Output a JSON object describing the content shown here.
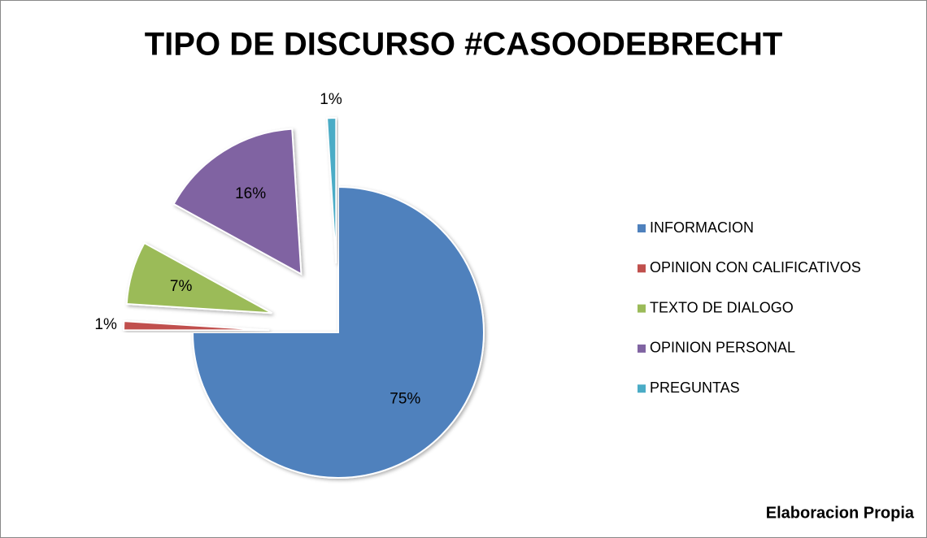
{
  "chart_data": {
    "type": "pie",
    "title": "TIPO DE DISCURSO #CASOODEBRECHT",
    "categories": [
      "INFORMACION",
      "OPINION CON CALIFICATIVOS",
      "TEXTO DE DIALOGO",
      "OPINION PERSONAL",
      "PREGUNTAS"
    ],
    "values": [
      75,
      1,
      7,
      16,
      1
    ],
    "value_labels": [
      "75%",
      "1%",
      "7%",
      "16%",
      "1%"
    ],
    "colors": [
      "#4f81bd",
      "#c0504d",
      "#9bbb59",
      "#8064a2",
      "#4bacc6"
    ],
    "exploded": true,
    "legend": "right",
    "annotation": "Elaboracion Propia"
  }
}
